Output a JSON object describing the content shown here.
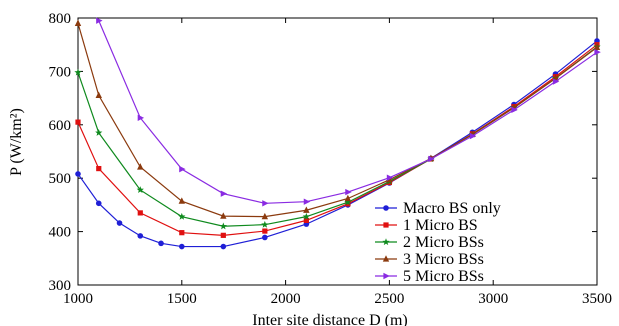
{
  "chart_data": {
    "type": "line",
    "title": "",
    "xlabel": "Inter site distance D (m)",
    "ylabel": "P (W/km²)",
    "xlim": [
      1000,
      3500
    ],
    "ylim": [
      300,
      800
    ],
    "xticks": [
      1000,
      1500,
      2000,
      2500,
      3000,
      3500
    ],
    "yticks": [
      300,
      400,
      500,
      600,
      700,
      800
    ],
    "legend_placement": "lower-right",
    "grid": false,
    "series": [
      {
        "name": "Macro BS only",
        "color": "#1f1fd6",
        "marker": "circle",
        "x": [
          1000,
          1100,
          1200,
          1300,
          1400,
          1500,
          1700,
          1900,
          2100,
          2300,
          2500,
          2700,
          2900,
          3100,
          3300,
          3500
        ],
        "y": [
          508,
          453,
          416,
          392,
          378,
          372,
          372,
          389,
          414,
          450,
          491,
          537,
          586,
          638,
          695,
          757
        ]
      },
      {
        "name": "1 Micro BS",
        "color": "#e01010",
        "marker": "square",
        "x": [
          1000,
          1100,
          1300,
          1500,
          1700,
          1900,
          2100,
          2300,
          2500,
          2700,
          2900,
          3100,
          3300,
          3500
        ],
        "y": [
          605,
          518,
          435,
          398,
          393,
          401,
          421,
          452,
          492,
          536,
          583,
          634,
          690,
          750
        ]
      },
      {
        "name": "2 Micro BSs",
        "color": "#0f8a1e",
        "marker": "star",
        "x": [
          1000,
          1100,
          1300,
          1500,
          1700,
          1900,
          2100,
          2300,
          2500,
          2700,
          2900,
          3100,
          3300,
          3500
        ],
        "y": [
          698,
          585,
          478,
          428,
          410,
          413,
          428,
          455,
          494,
          536,
          582,
          632,
          687,
          746
        ]
      },
      {
        "name": "3 Micro BSs",
        "color": "#8b3a0e",
        "marker": "triangle",
        "x": [
          1000,
          1100,
          1300,
          1500,
          1700,
          1900,
          2100,
          2300,
          2500,
          2700,
          2900,
          3100,
          3300,
          3500
        ],
        "y": [
          790,
          655,
          521,
          457,
          429,
          428,
          440,
          462,
          497,
          537,
          582,
          632,
          687,
          745
        ]
      },
      {
        "name": "5 Micro BSs",
        "color": "#8a2be2",
        "marker": "triangle-right",
        "x": [
          1100,
          1300,
          1500,
          1700,
          1900,
          2100,
          2300,
          2500,
          2700,
          2900,
          3100,
          3300,
          3500
        ],
        "y": [
          795,
          613,
          517,
          471,
          453,
          456,
          474,
          501,
          536,
          579,
          628,
          681,
          736
        ]
      }
    ]
  }
}
